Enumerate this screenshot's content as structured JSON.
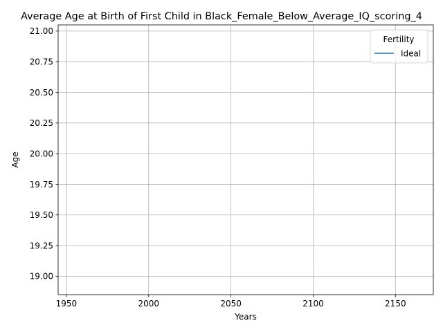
{
  "chart_data": {
    "type": "line",
    "title": "Average Age at Birth of First Child in Black_Female_Below_Average_IQ_scoring_4",
    "xlabel": "Years",
    "ylabel": "Age",
    "xlim": [
      1945,
      2173
    ],
    "ylim": [
      18.85,
      21.05
    ],
    "x_ticks": [
      1950,
      2000,
      2050,
      2100,
      2150
    ],
    "y_ticks": [
      19.0,
      19.25,
      19.5,
      19.75,
      20.0,
      20.25,
      20.5,
      20.75,
      21.0
    ],
    "x_tick_labels": [
      "1950",
      "2000",
      "2050",
      "2100",
      "2150"
    ],
    "y_tick_labels": [
      "19.00",
      "19.25",
      "19.50",
      "19.75",
      "20.00",
      "20.25",
      "20.50",
      "20.75",
      "21.00"
    ],
    "grid": true,
    "legend": {
      "title": "Fertility",
      "placement": "top-right"
    },
    "series": [
      {
        "name": "Ideal",
        "color": "#1f77b4",
        "x": [],
        "y": []
      }
    ]
  }
}
